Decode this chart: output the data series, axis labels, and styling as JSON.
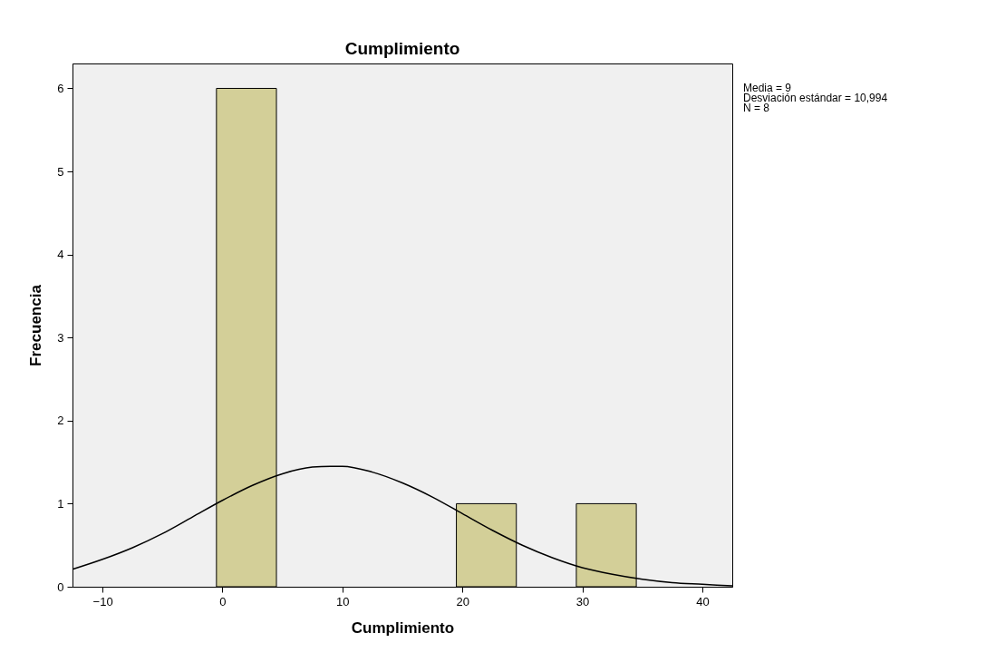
{
  "chart_data": {
    "type": "histogram",
    "title": "Cumplimiento",
    "xlabel": "Cumplimiento",
    "ylabel": "Frecuencia",
    "bins": [
      -0.5,
      4.5,
      9.5,
      14.5,
      19.5,
      24.5,
      29.5,
      34.5
    ],
    "values": [
      6,
      0,
      0,
      0,
      1,
      0,
      1
    ],
    "color": "#d3cf98",
    "series": [
      {
        "type": "line",
        "color": "#000000",
        "x": [
          -12.5,
          -10,
          -7.5,
          -5,
          -2.5,
          0,
          2.5,
          5,
          7.5,
          9,
          10,
          12.5,
          15,
          17.5,
          20,
          22.5,
          25,
          27.5,
          30,
          32.5,
          35,
          37.5,
          40,
          42.5
        ],
        "values": [
          0.21,
          0.33,
          0.47,
          0.64,
          0.84,
          1.04,
          1.22,
          1.36,
          1.44,
          1.45,
          1.45,
          1.38,
          1.25,
          1.08,
          0.88,
          0.68,
          0.5,
          0.35,
          0.23,
          0.15,
          0.09,
          0.05,
          0.03,
          0.01
        ]
      }
    ],
    "xlim": [
      -12.5,
      42.5
    ],
    "xticks": [
      -10,
      0,
      10,
      20,
      30,
      40
    ],
    "ylim": [
      0,
      6.3
    ],
    "yticks": [
      0,
      1,
      2,
      3,
      4,
      5,
      6
    ],
    "grid": false,
    "annotations": [
      "Media = 9",
      "Desviación estándar = 10,994",
      "N = 8"
    ]
  }
}
